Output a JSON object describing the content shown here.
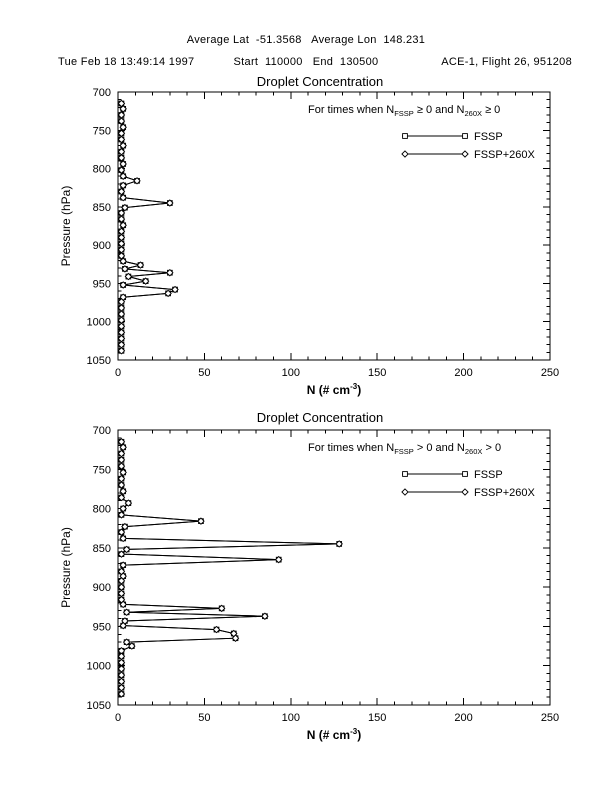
{
  "header": {
    "line1": "Average Lat  -51.3568   Average Lon  148.231",
    "line2_left": "Tue Feb 18 13:49:14 1997",
    "line2_center": "Start  110000   End  130500",
    "line2_right": "ACE-1, Flight 26, 951208"
  },
  "colors": {
    "ink": "#000000",
    "paper": "#ffffff"
  },
  "chart_data": [
    {
      "type": "line",
      "title": "Droplet Concentration",
      "xlabel_parts": {
        "main": "N (# cm",
        "sup": "-3",
        "close": ")"
      },
      "ylabel": "Pressure (hPa)",
      "xlim": [
        0,
        250
      ],
      "ylim": [
        700,
        1050
      ],
      "y_inverted": true,
      "grid": false,
      "xticks": [
        0,
        50,
        100,
        150,
        200,
        250
      ],
      "yticks": [
        700,
        750,
        800,
        850,
        900,
        950,
        1000,
        1050
      ],
      "condition": {
        "pre": "For times when N",
        "sub_a": "FSSP",
        "mid": " ≥ 0 and N",
        "sub_b": "260X",
        "post": " ≥ 0"
      },
      "legend": [
        {
          "label": "FSSP",
          "marker": "square"
        },
        {
          "label": "FSSP+260X",
          "marker": "diamond"
        }
      ],
      "series": [
        {
          "name": "FSSP",
          "marker": "square",
          "points": [
            [
              715,
              2
            ],
            [
              722,
              3
            ],
            [
              730,
              2
            ],
            [
              738,
              2
            ],
            [
              746,
              3
            ],
            [
              754,
              2
            ],
            [
              762,
              2
            ],
            [
              770,
              3
            ],
            [
              778,
              2
            ],
            [
              786,
              2
            ],
            [
              794,
              3
            ],
            [
              802,
              2
            ],
            [
              810,
              3
            ],
            [
              816,
              11
            ],
            [
              822,
              3
            ],
            [
              830,
              2
            ],
            [
              838,
              3
            ],
            [
              845,
              30
            ],
            [
              851,
              4
            ],
            [
              858,
              2
            ],
            [
              866,
              2
            ],
            [
              874,
              3
            ],
            [
              882,
              2
            ],
            [
              890,
              2
            ],
            [
              898,
              2
            ],
            [
              906,
              2
            ],
            [
              914,
              2
            ],
            [
              921,
              3
            ],
            [
              926,
              13
            ],
            [
              931,
              4
            ],
            [
              936,
              30
            ],
            [
              941,
              6
            ],
            [
              947,
              16
            ],
            [
              952,
              3
            ],
            [
              958,
              33
            ],
            [
              963,
              29
            ],
            [
              968,
              3
            ],
            [
              974,
              2
            ],
            [
              982,
              2
            ],
            [
              990,
              2
            ],
            [
              998,
              2
            ],
            [
              1006,
              2
            ],
            [
              1014,
              2
            ],
            [
              1022,
              2
            ],
            [
              1030,
              2
            ],
            [
              1038,
              2
            ]
          ]
        },
        {
          "name": "FSSP+260X",
          "marker": "diamond",
          "points": [
            [
              715,
              2
            ],
            [
              722,
              3
            ],
            [
              730,
              2
            ],
            [
              738,
              2
            ],
            [
              746,
              3
            ],
            [
              754,
              2
            ],
            [
              762,
              2
            ],
            [
              770,
              3
            ],
            [
              778,
              2
            ],
            [
              786,
              2
            ],
            [
              794,
              3
            ],
            [
              802,
              2
            ],
            [
              810,
              3
            ],
            [
              816,
              11
            ],
            [
              822,
              3
            ],
            [
              830,
              2
            ],
            [
              838,
              3
            ],
            [
              845,
              30
            ],
            [
              851,
              4
            ],
            [
              858,
              2
            ],
            [
              866,
              2
            ],
            [
              874,
              3
            ],
            [
              882,
              2
            ],
            [
              890,
              2
            ],
            [
              898,
              2
            ],
            [
              906,
              2
            ],
            [
              914,
              2
            ],
            [
              921,
              3
            ],
            [
              926,
              13
            ],
            [
              931,
              4
            ],
            [
              936,
              30
            ],
            [
              941,
              6
            ],
            [
              947,
              16
            ],
            [
              952,
              3
            ],
            [
              958,
              33
            ],
            [
              963,
              29
            ],
            [
              968,
              3
            ],
            [
              974,
              2
            ],
            [
              982,
              2
            ],
            [
              990,
              2
            ],
            [
              998,
              2
            ],
            [
              1006,
              2
            ],
            [
              1014,
              2
            ],
            [
              1022,
              2
            ],
            [
              1030,
              2
            ],
            [
              1038,
              2
            ]
          ]
        }
      ]
    },
    {
      "type": "line",
      "title": "Droplet Concentration",
      "xlabel_parts": {
        "main": "N (# cm",
        "sup": "-3",
        "close": ")"
      },
      "ylabel": "Pressure (hPa)",
      "xlim": [
        0,
        250
      ],
      "ylim": [
        700,
        1050
      ],
      "y_inverted": true,
      "grid": false,
      "xticks": [
        0,
        50,
        100,
        150,
        200,
        250
      ],
      "yticks": [
        700,
        750,
        800,
        850,
        900,
        950,
        1000,
        1050
      ],
      "condition": {
        "pre": "For times when N",
        "sub_a": "FSSP",
        "mid": " > 0 and N",
        "sub_b": "260X",
        "post": " > 0"
      },
      "legend": [
        {
          "label": "FSSP",
          "marker": "square"
        },
        {
          "label": "FSSP+260X",
          "marker": "diamond"
        }
      ],
      "series": [
        {
          "name": "FSSP",
          "marker": "square",
          "points": [
            [
              715,
              2
            ],
            [
              722,
              3
            ],
            [
              730,
              2
            ],
            [
              738,
              2
            ],
            [
              746,
              2
            ],
            [
              754,
              3
            ],
            [
              762,
              2
            ],
            [
              770,
              2
            ],
            [
              778,
              3
            ],
            [
              786,
              2
            ],
            [
              793,
              6
            ],
            [
              800,
              3
            ],
            [
              808,
              2
            ],
            [
              816,
              48
            ],
            [
              823,
              4
            ],
            [
              830,
              2
            ],
            [
              838,
              3
            ],
            [
              845,
              128
            ],
            [
              852,
              5
            ],
            [
              858,
              2
            ],
            [
              865,
              93
            ],
            [
              872,
              3
            ],
            [
              880,
              2
            ],
            [
              886,
              3
            ],
            [
              892,
              2
            ],
            [
              900,
              2
            ],
            [
              908,
              2
            ],
            [
              916,
              2
            ],
            [
              922,
              3
            ],
            [
              927,
              60
            ],
            [
              932,
              5
            ],
            [
              937,
              85
            ],
            [
              943,
              4
            ],
            [
              949,
              3
            ],
            [
              954,
              57
            ],
            [
              959,
              67
            ],
            [
              965,
              68
            ],
            [
              970,
              5
            ],
            [
              975,
              8
            ],
            [
              981,
              2
            ],
            [
              988,
              2
            ],
            [
              996,
              2
            ],
            [
              1004,
              2
            ],
            [
              1012,
              2
            ],
            [
              1020,
              2
            ],
            [
              1028,
              2
            ],
            [
              1036,
              2
            ]
          ]
        },
        {
          "name": "FSSP+260X",
          "marker": "diamond",
          "points": [
            [
              715,
              2
            ],
            [
              722,
              3
            ],
            [
              730,
              2
            ],
            [
              738,
              2
            ],
            [
              746,
              2
            ],
            [
              754,
              3
            ],
            [
              762,
              2
            ],
            [
              770,
              2
            ],
            [
              778,
              3
            ],
            [
              786,
              2
            ],
            [
              793,
              6
            ],
            [
              800,
              3
            ],
            [
              808,
              2
            ],
            [
              816,
              48
            ],
            [
              823,
              4
            ],
            [
              830,
              2
            ],
            [
              838,
              3
            ],
            [
              845,
              128
            ],
            [
              852,
              5
            ],
            [
              858,
              2
            ],
            [
              865,
              93
            ],
            [
              872,
              3
            ],
            [
              880,
              2
            ],
            [
              886,
              3
            ],
            [
              892,
              2
            ],
            [
              900,
              2
            ],
            [
              908,
              2
            ],
            [
              916,
              2
            ],
            [
              922,
              3
            ],
            [
              927,
              60
            ],
            [
              932,
              5
            ],
            [
              937,
              85
            ],
            [
              943,
              4
            ],
            [
              949,
              3
            ],
            [
              954,
              57
            ],
            [
              959,
              67
            ],
            [
              965,
              68
            ],
            [
              970,
              5
            ],
            [
              975,
              8
            ],
            [
              981,
              2
            ],
            [
              988,
              2
            ],
            [
              996,
              2
            ],
            [
              1004,
              2
            ],
            [
              1012,
              2
            ],
            [
              1020,
              2
            ],
            [
              1028,
              2
            ],
            [
              1036,
              2
            ]
          ]
        }
      ]
    }
  ]
}
